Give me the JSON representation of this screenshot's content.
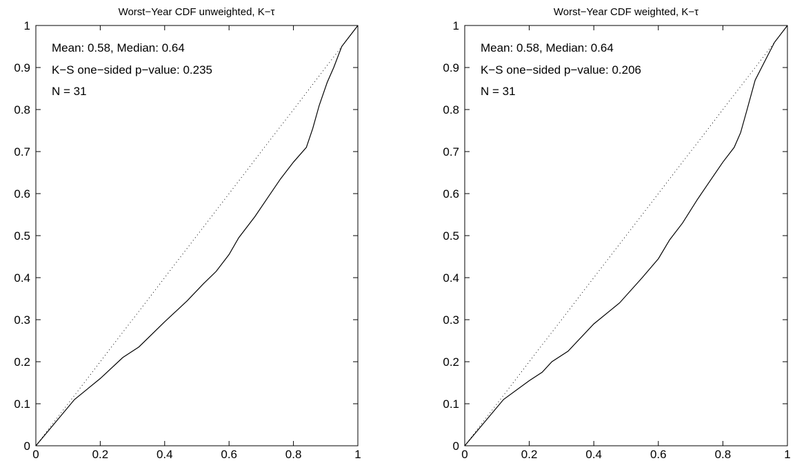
{
  "chart_data": [
    {
      "type": "line",
      "title": "Worst−Year CDF unweighted, K−τ",
      "xlabel": "",
      "ylabel": "",
      "xlim": [
        0,
        1
      ],
      "ylim": [
        0,
        1
      ],
      "xticks": [
        "0",
        "0.2",
        "0.4",
        "0.6",
        "0.8",
        "1"
      ],
      "yticks": [
        "0",
        "0.1",
        "0.2",
        "0.3",
        "0.4",
        "0.5",
        "0.6",
        "0.7",
        "0.8",
        "0.9",
        "1"
      ],
      "grid": false,
      "annotations": [
        "Mean:  0.58,  Median:  0.64",
        "K−S one−sided p−value:  0.235",
        "N = 31"
      ],
      "series": [
        {
          "style": "solid",
          "x": [
            0,
            0.12,
            0.2,
            0.27,
            0.32,
            0.4,
            0.47,
            0.52,
            0.56,
            0.6,
            0.63,
            0.68,
            0.72,
            0.76,
            0.8,
            0.84,
            0.86,
            0.88,
            0.905,
            0.925,
            0.95,
            1
          ],
          "y": [
            0,
            0.11,
            0.16,
            0.21,
            0.235,
            0.295,
            0.345,
            0.385,
            0.415,
            0.455,
            0.495,
            0.545,
            0.59,
            0.635,
            0.675,
            0.71,
            0.755,
            0.81,
            0.865,
            0.9,
            0.95,
            1
          ]
        },
        {
          "style": "dotted",
          "x": [
            0,
            1
          ],
          "y": [
            0,
            1
          ]
        }
      ]
    },
    {
      "type": "line",
      "title": "Worst−Year CDF weighted, K−τ",
      "xlabel": "",
      "ylabel": "",
      "xlim": [
        0,
        1
      ],
      "ylim": [
        0,
        1
      ],
      "xticks": [
        "0",
        "0.2",
        "0.4",
        "0.6",
        "0.8",
        "1"
      ],
      "yticks": [
        "0",
        "0.1",
        "0.2",
        "0.3",
        "0.4",
        "0.5",
        "0.6",
        "0.7",
        "0.8",
        "0.9",
        "1"
      ],
      "grid": false,
      "annotations": [
        "Mean:  0.58,  Median:  0.64",
        "K−S one−sided p−value:  0.206",
        "N = 31"
      ],
      "series": [
        {
          "style": "solid",
          "x": [
            0,
            0.12,
            0.2,
            0.24,
            0.27,
            0.32,
            0.4,
            0.48,
            0.55,
            0.6,
            0.635,
            0.675,
            0.72,
            0.76,
            0.8,
            0.835,
            0.855,
            0.875,
            0.9,
            0.93,
            0.96,
            1
          ],
          "y": [
            0,
            0.11,
            0.155,
            0.175,
            0.2,
            0.225,
            0.29,
            0.34,
            0.4,
            0.445,
            0.49,
            0.53,
            0.585,
            0.63,
            0.675,
            0.71,
            0.745,
            0.8,
            0.87,
            0.915,
            0.96,
            1
          ]
        },
        {
          "style": "dotted",
          "x": [
            0,
            1
          ],
          "y": [
            0,
            1
          ]
        }
      ]
    }
  ]
}
